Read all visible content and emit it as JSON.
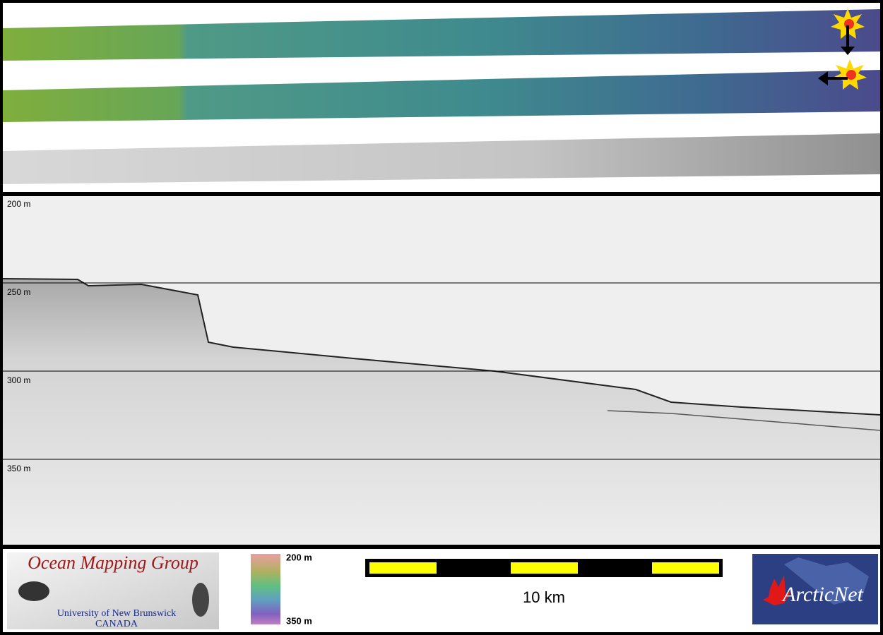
{
  "depth_profile": {
    "depth_labels": [
      "200 m",
      "250 m",
      "300 m",
      "350 m"
    ]
  },
  "color_scale": {
    "top_label": "200 m",
    "bottom_label": "350 m"
  },
  "scale_bar": {
    "label": "10 km"
  },
  "logos": {
    "omg_title": "Ocean Mapping Group",
    "omg_university": "University of New Brunswick",
    "omg_country": "CANADA",
    "arcticnet": "ArcticNet"
  }
}
